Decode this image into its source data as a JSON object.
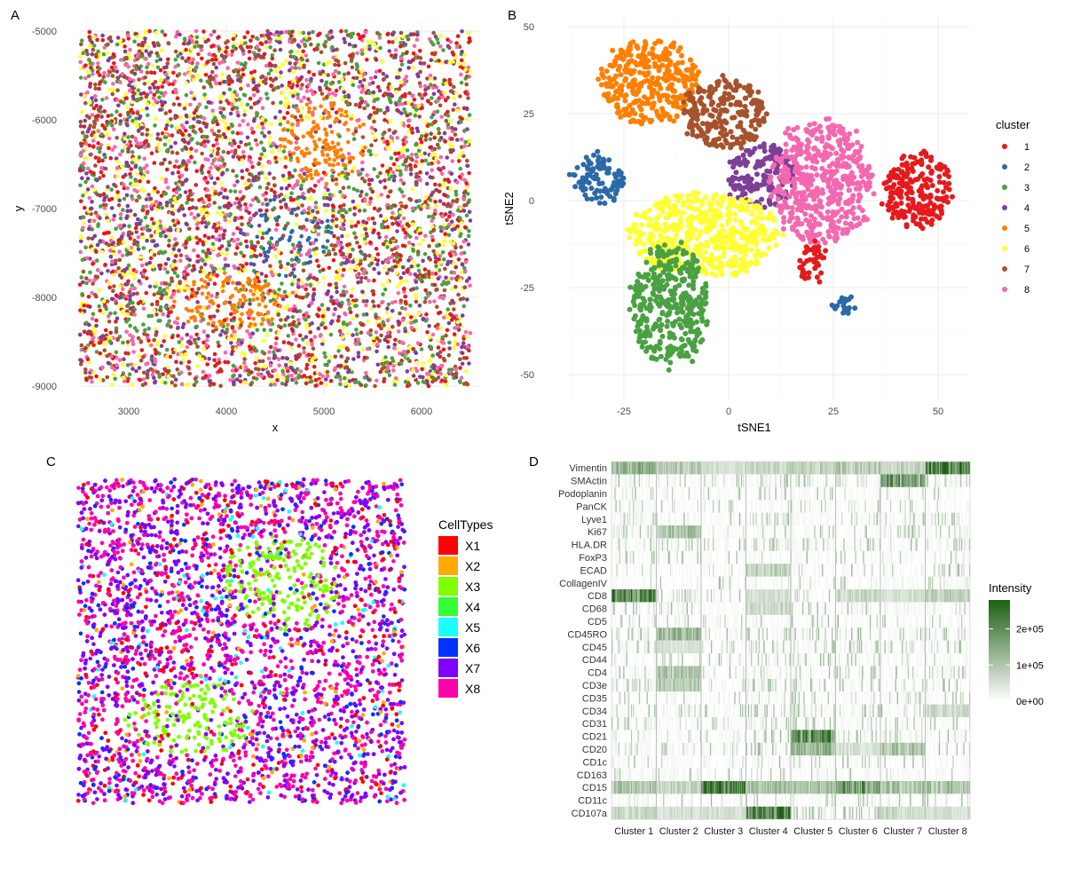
{
  "panel_labels": [
    "A",
    "B",
    "C",
    "D"
  ],
  "colors": {
    "clusters": [
      "#e41a1c",
      "#2b6aa8",
      "#4aa142",
      "#7e3f98",
      "#ff7f00",
      "#ffff33",
      "#a6522c",
      "#f468b0"
    ],
    "celltypes": [
      "#ff0000",
      "#ffaa00",
      "#7fff00",
      "#33ff33",
      "#1affff",
      "#0033ff",
      "#7f00ff",
      "#ff00aa"
    ],
    "heat_low": "#ffffff",
    "heat_high": "#1e5e14",
    "grid": "#ebebeb"
  },
  "chart_data": [
    {
      "panel": "A",
      "type": "scatter",
      "xlabel": "x",
      "ylabel": "y",
      "xlim": [
        2400,
        6600
      ],
      "ylim": [
        -9000,
        -5000
      ],
      "x_ticks": [
        "3000",
        "4000",
        "5000",
        "6000"
      ],
      "y_ticks": [
        "-5000",
        "-6000",
        "-7000",
        "-8000",
        "-9000"
      ],
      "color_by": "cluster",
      "regions": [
        {
          "cluster": "5",
          "center": [
            5000,
            -6250
          ],
          "radius": [
            450,
            500
          ]
        },
        {
          "cluster": "5",
          "center": [
            4000,
            -8050
          ],
          "radius": [
            600,
            350
          ]
        },
        {
          "cluster": "2",
          "center": [
            4600,
            -7300
          ],
          "radius": [
            500,
            500
          ]
        }
      ],
      "background_mix": [
        "1",
        "3",
        "4",
        "6",
        "7",
        "8"
      ]
    },
    {
      "panel": "B",
      "type": "scatter",
      "xlabel": "tSNE1",
      "ylabel": "tSNE2",
      "xlim": [
        -42,
        55
      ],
      "ylim": [
        -55,
        52
      ],
      "x_ticks": [
        "-25",
        "0",
        "25",
        "50"
      ],
      "y_ticks": [
        "50",
        "25",
        "0",
        "-25",
        "-50"
      ],
      "legend_title": "cluster",
      "legend": [
        "1",
        "2",
        "3",
        "4",
        "5",
        "6",
        "7",
        "8"
      ],
      "legend_position": "right",
      "clusters": [
        {
          "name": "5",
          "cx": -19,
          "cy": 34,
          "rx": 12,
          "ry": 12
        },
        {
          "name": "7",
          "cx": -1,
          "cy": 25,
          "rx": 10,
          "ry": 10
        },
        {
          "name": "2",
          "cx": -31,
          "cy": 6,
          "rx": 6,
          "ry": 7
        },
        {
          "name": "4",
          "cx": 8,
          "cy": 7,
          "rx": 8,
          "ry": 9
        },
        {
          "name": "8",
          "cx": 22,
          "cy": 5,
          "rx": 12,
          "ry": 18
        },
        {
          "name": "1",
          "cx": 45,
          "cy": 3,
          "rx": 8,
          "ry": 11
        },
        {
          "name": "6",
          "cx": -6,
          "cy": -10,
          "rx": 18,
          "ry": 12
        },
        {
          "name": "3",
          "cx": -14,
          "cy": -30,
          "rx": 9,
          "ry": 18
        },
        {
          "name": "2",
          "cx": 28,
          "cy": -30,
          "rx": 3,
          "ry": 3
        },
        {
          "name": "1",
          "cx": 20,
          "cy": -18,
          "rx": 3,
          "ry": 6
        }
      ]
    },
    {
      "panel": "C",
      "type": "scatter",
      "legend_title": "CellTypes",
      "legend": [
        "X1",
        "X2",
        "X3",
        "X4",
        "X5",
        "X6",
        "X7",
        "X8"
      ],
      "legend_position": "right",
      "regions": [
        {
          "celltype": "X3",
          "center": [
            0.62,
            0.32
          ],
          "radius": [
            0.18,
            0.15
          ]
        },
        {
          "celltype": "X3",
          "center": [
            0.34,
            0.74
          ],
          "radius": [
            0.2,
            0.12
          ]
        }
      ],
      "background_mix": [
        "X1",
        "X2",
        "X5",
        "X6",
        "X7",
        "X8"
      ]
    },
    {
      "panel": "D",
      "type": "heatmap",
      "legend_title": "Intensity",
      "legend_labels": [
        "2e+05",
        "1e+05",
        "0e+00"
      ],
      "legend_values": [
        200000,
        100000,
        0
      ],
      "legend_max": 280000,
      "categories": [
        "Cluster 1",
        "Cluster 2",
        "Cluster 3",
        "Cluster 4",
        "Cluster 5",
        "Cluster 6",
        "Cluster 7",
        "Cluster 8"
      ],
      "markers": [
        "Vimentin",
        "SMActin",
        "Podoplanin",
        "PanCK",
        "Lyve1",
        "Ki67",
        "HLA.DR",
        "FoxP3",
        "ECAD",
        "CollagenIV",
        "CD8",
        "CD68",
        "CD5",
        "CD45RO",
        "CD45",
        "CD44",
        "CD4",
        "CD3e",
        "CD35",
        "CD34",
        "CD31",
        "CD21",
        "CD20",
        "CD1c",
        "CD163",
        "CD15",
        "CD11c",
        "CD107a"
      ],
      "mean_intensity_level": [
        [
          0.5,
          0.35,
          0.2,
          0.25,
          0.3,
          0.35,
          0.3,
          0.9
        ],
        [
          0.1,
          0.1,
          0.1,
          0.1,
          0.1,
          0.1,
          0.65,
          0.1
        ],
        [
          0.05,
          0.05,
          0.05,
          0.05,
          0.05,
          0.05,
          0.05,
          0.05
        ],
        [
          0.05,
          0.05,
          0.05,
          0.05,
          0.05,
          0.05,
          0.05,
          0.05
        ],
        [
          0.15,
          0.05,
          0.05,
          0.1,
          0.05,
          0.05,
          0.1,
          0.15
        ],
        [
          0.15,
          0.4,
          0.05,
          0.05,
          0.05,
          0.05,
          0.1,
          0.1
        ],
        [
          0.05,
          0.1,
          0.05,
          0.1,
          0.15,
          0.1,
          0.05,
          0.1
        ],
        [
          0.05,
          0.1,
          0.05,
          0.05,
          0.05,
          0.05,
          0.05,
          0.05
        ],
        [
          0.05,
          0.05,
          0.05,
          0.3,
          0.05,
          0.05,
          0.05,
          0.1
        ],
        [
          0.05,
          0.05,
          0.05,
          0.05,
          0.05,
          0.05,
          0.05,
          0.05
        ],
        [
          0.85,
          0.15,
          0.1,
          0.2,
          0.15,
          0.25,
          0.2,
          0.3
        ],
        [
          0.05,
          0.1,
          0.05,
          0.25,
          0.05,
          0.1,
          0.05,
          0.05
        ],
        [
          0.05,
          0.05,
          0.05,
          0.05,
          0.05,
          0.05,
          0.05,
          0.05
        ],
        [
          0.1,
          0.5,
          0.05,
          0.1,
          0.1,
          0.1,
          0.1,
          0.1
        ],
        [
          0.1,
          0.2,
          0.05,
          0.1,
          0.1,
          0.1,
          0.1,
          0.1
        ],
        [
          0.05,
          0.1,
          0.05,
          0.1,
          0.15,
          0.05,
          0.05,
          0.05
        ],
        [
          0.1,
          0.4,
          0.05,
          0.1,
          0.1,
          0.1,
          0.1,
          0.1
        ],
        [
          0.1,
          0.35,
          0.05,
          0.1,
          0.1,
          0.1,
          0.1,
          0.1
        ],
        [
          0.05,
          0.05,
          0.05,
          0.05,
          0.1,
          0.05,
          0.05,
          0.05
        ],
        [
          0.1,
          0.1,
          0.05,
          0.1,
          0.1,
          0.1,
          0.1,
          0.25
        ],
        [
          0.1,
          0.1,
          0.05,
          0.1,
          0.1,
          0.1,
          0.1,
          0.1
        ],
        [
          0.05,
          0.05,
          0.05,
          0.1,
          0.75,
          0.1,
          0.15,
          0.05
        ],
        [
          0.1,
          0.1,
          0.05,
          0.1,
          0.5,
          0.2,
          0.4,
          0.1
        ],
        [
          0.05,
          0.05,
          0.05,
          0.05,
          0.05,
          0.05,
          0.05,
          0.05
        ],
        [
          0.05,
          0.05,
          0.05,
          0.15,
          0.05,
          0.05,
          0.05,
          0.05
        ],
        [
          0.4,
          0.3,
          0.95,
          0.4,
          0.4,
          0.7,
          0.4,
          0.4
        ],
        [
          0.05,
          0.05,
          0.05,
          0.05,
          0.05,
          0.05,
          0.05,
          0.05
        ],
        [
          0.25,
          0.2,
          0.2,
          0.9,
          0.15,
          0.15,
          0.25,
          0.2
        ]
      ]
    }
  ]
}
